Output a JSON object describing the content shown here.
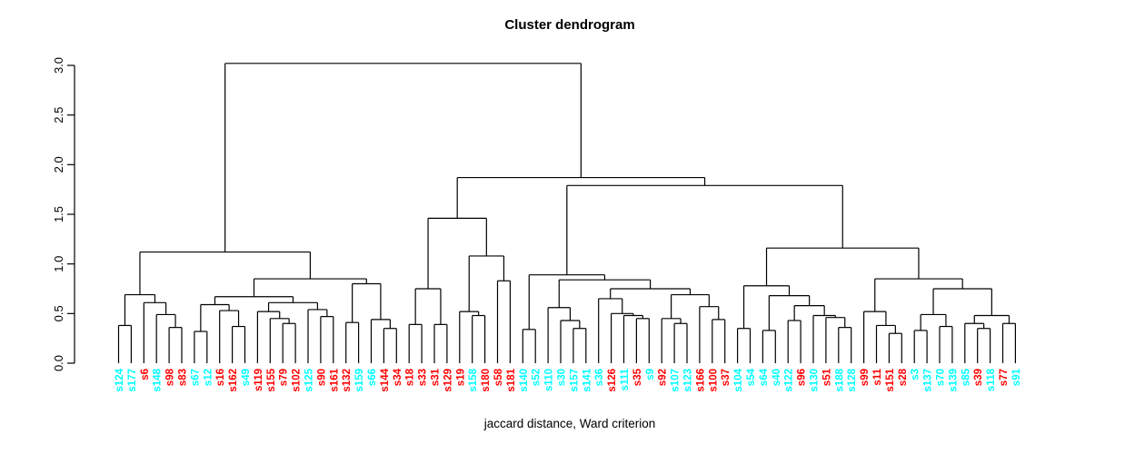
{
  "chart_data": {
    "type": "dendrogram",
    "title": "Cluster dendrogram",
    "xlabel": "jaccard distance, Ward criterion",
    "ylabel": "",
    "ylim": [
      0,
      3
    ],
    "y_ticks": [
      0,
      0.5,
      1,
      1.5,
      2,
      2.5,
      3
    ],
    "grid": false,
    "legend": "none",
    "line_color": "#000000",
    "label_colors": {
      "red": "#ff0000",
      "cyan": "#00ffff"
    },
    "leaves": [
      {
        "label": "s124",
        "color": "cyan"
      },
      {
        "label": "s177",
        "color": "cyan"
      },
      {
        "label": "s6",
        "color": "red"
      },
      {
        "label": "s148",
        "color": "cyan"
      },
      {
        "label": "s98",
        "color": "red"
      },
      {
        "label": "s83",
        "color": "red"
      },
      {
        "label": "s67",
        "color": "cyan"
      },
      {
        "label": "s12",
        "color": "cyan"
      },
      {
        "label": "s16",
        "color": "red"
      },
      {
        "label": "s162",
        "color": "red"
      },
      {
        "label": "s49",
        "color": "cyan"
      },
      {
        "label": "s119",
        "color": "red"
      },
      {
        "label": "s155",
        "color": "red"
      },
      {
        "label": "s79",
        "color": "red"
      },
      {
        "label": "s102",
        "color": "red"
      },
      {
        "label": "s125",
        "color": "cyan"
      },
      {
        "label": "s90",
        "color": "red"
      },
      {
        "label": "s161",
        "color": "red"
      },
      {
        "label": "s132",
        "color": "red"
      },
      {
        "label": "s159",
        "color": "cyan"
      },
      {
        "label": "s66",
        "color": "cyan"
      },
      {
        "label": "s144",
        "color": "red"
      },
      {
        "label": "s34",
        "color": "red"
      },
      {
        "label": "s18",
        "color": "red"
      },
      {
        "label": "s33",
        "color": "red"
      },
      {
        "label": "s31",
        "color": "red"
      },
      {
        "label": "s129",
        "color": "red"
      },
      {
        "label": "s19",
        "color": "red"
      },
      {
        "label": "s158",
        "color": "cyan"
      },
      {
        "label": "s180",
        "color": "red"
      },
      {
        "label": "s58",
        "color": "red"
      },
      {
        "label": "s181",
        "color": "red"
      },
      {
        "label": "s140",
        "color": "cyan"
      },
      {
        "label": "s52",
        "color": "cyan"
      },
      {
        "label": "s110",
        "color": "cyan"
      },
      {
        "label": "s30",
        "color": "cyan"
      },
      {
        "label": "s157",
        "color": "cyan"
      },
      {
        "label": "s141",
        "color": "cyan"
      },
      {
        "label": "s36",
        "color": "cyan"
      },
      {
        "label": "s126",
        "color": "red"
      },
      {
        "label": "s111",
        "color": "cyan"
      },
      {
        "label": "s35",
        "color": "red"
      },
      {
        "label": "s9",
        "color": "cyan"
      },
      {
        "label": "s92",
        "color": "red"
      },
      {
        "label": "s107",
        "color": "cyan"
      },
      {
        "label": "s123",
        "color": "cyan"
      },
      {
        "label": "s166",
        "color": "red"
      },
      {
        "label": "s100",
        "color": "red"
      },
      {
        "label": "s37",
        "color": "red"
      },
      {
        "label": "s104",
        "color": "cyan"
      },
      {
        "label": "s54",
        "color": "cyan"
      },
      {
        "label": "s64",
        "color": "cyan"
      },
      {
        "label": "s40",
        "color": "cyan"
      },
      {
        "label": "s122",
        "color": "cyan"
      },
      {
        "label": "s96",
        "color": "red"
      },
      {
        "label": "s130",
        "color": "cyan"
      },
      {
        "label": "s51",
        "color": "red"
      },
      {
        "label": "s188",
        "color": "cyan"
      },
      {
        "label": "s128",
        "color": "cyan"
      },
      {
        "label": "s99",
        "color": "red"
      },
      {
        "label": "s11",
        "color": "red"
      },
      {
        "label": "s151",
        "color": "red"
      },
      {
        "label": "s28",
        "color": "red"
      },
      {
        "label": "s3",
        "color": "cyan"
      },
      {
        "label": "s137",
        "color": "cyan"
      },
      {
        "label": "s70",
        "color": "cyan"
      },
      {
        "label": "s139",
        "color": "cyan"
      },
      {
        "label": "s85",
        "color": "cyan"
      },
      {
        "label": "s39",
        "color": "red"
      },
      {
        "label": "s118",
        "color": "cyan"
      },
      {
        "label": "s77",
        "color": "red"
      },
      {
        "label": "s91",
        "color": "cyan"
      }
    ],
    "tree": {
      "h": 3.02,
      "c": [
        {
          "h": 1.12,
          "c": [
            {
              "h": 0.69,
              "c": [
                {
                  "h": 0.38,
                  "c": [
                    0,
                    1
                  ]
                },
                {
                  "h": 0.61,
                  "c": [
                    2,
                    {
                      "h": 0.49,
                      "c": [
                        3,
                        {
                          "h": 0.36,
                          "c": [
                            4,
                            5
                          ]
                        }
                      ]
                    }
                  ]
                }
              ]
            },
            {
              "h": 0.85,
              "c": [
                {
                  "h": 0.67,
                  "c": [
                    {
                      "h": 0.59,
                      "c": [
                        {
                          "h": 0.32,
                          "c": [
                            6,
                            7
                          ]
                        },
                        {
                          "h": 0.53,
                          "c": [
                            8,
                            {
                              "h": 0.37,
                              "c": [
                                9,
                                10
                              ]
                            }
                          ]
                        }
                      ]
                    },
                    {
                      "h": 0.61,
                      "c": [
                        {
                          "h": 0.52,
                          "c": [
                            11,
                            {
                              "h": 0.45,
                              "c": [
                                12,
                                {
                                  "h": 0.4,
                                  "c": [
                                    13,
                                    14
                                  ]
                                }
                              ]
                            }
                          ]
                        },
                        {
                          "h": 0.54,
                          "c": [
                            15,
                            {
                              "h": 0.47,
                              "c": [
                                16,
                                17
                              ]
                            }
                          ]
                        }
                      ]
                    }
                  ]
                },
                {
                  "h": 0.8,
                  "c": [
                    {
                      "h": 0.41,
                      "c": [
                        18,
                        19
                      ]
                    },
                    {
                      "h": 0.44,
                      "c": [
                        20,
                        {
                          "h": 0.35,
                          "c": [
                            21,
                            22
                          ]
                        }
                      ]
                    }
                  ]
                }
              ]
            }
          ]
        },
        {
          "h": 1.87,
          "c": [
            {
              "h": 1.46,
              "c": [
                {
                  "h": 0.75,
                  "c": [
                    {
                      "h": 0.39,
                      "c": [
                        23,
                        24
                      ]
                    },
                    {
                      "h": 0.39,
                      "c": [
                        25,
                        26
                      ]
                    }
                  ]
                },
                {
                  "h": 1.08,
                  "c": [
                    {
                      "h": 0.52,
                      "c": [
                        27,
                        {
                          "h": 0.48,
                          "c": [
                            28,
                            29
                          ]
                        }
                      ]
                    },
                    {
                      "h": 0.83,
                      "c": [
                        30,
                        31
                      ]
                    }
                  ]
                }
              ]
            },
            {
              "h": 1.79,
              "c": [
                {
                  "h": 0.89,
                  "c": [
                    {
                      "h": 0.34,
                      "c": [
                        32,
                        33
                      ]
                    },
                    {
                      "h": 0.84,
                      "c": [
                        {
                          "h": 0.56,
                          "c": [
                            34,
                            {
                              "h": 0.43,
                              "c": [
                                35,
                                {
                                  "h": 0.35,
                                  "c": [
                                    36,
                                    37
                                  ]
                                }
                              ]
                            }
                          ]
                        },
                        {
                          "h": 0.75,
                          "c": [
                            {
                              "h": 0.65,
                              "c": [
                                38,
                                {
                                  "h": 0.5,
                                  "c": [
                                    39,
                                    {
                                      "h": 0.48,
                                      "c": [
                                        40,
                                        {
                                          "h": 0.45,
                                          "c": [
                                            41,
                                            42
                                          ]
                                        }
                                      ]
                                    }
                                  ]
                                }
                              ]
                            },
                            {
                              "h": 0.69,
                              "c": [
                                {
                                  "h": 0.45,
                                  "c": [
                                    43,
                                    {
                                      "h": 0.4,
                                      "c": [
                                        44,
                                        45
                                      ]
                                    }
                                  ]
                                },
                                {
                                  "h": 0.57,
                                  "c": [
                                    46,
                                    {
                                      "h": 0.44,
                                      "c": [
                                        47,
                                        48
                                      ]
                                    }
                                  ]
                                }
                              ]
                            }
                          ]
                        }
                      ]
                    }
                  ]
                },
                {
                  "h": 1.16,
                  "c": [
                    {
                      "h": 0.78,
                      "c": [
                        {
                          "h": 0.35,
                          "c": [
                            49,
                            50
                          ]
                        },
                        {
                          "h": 0.68,
                          "c": [
                            {
                              "h": 0.33,
                              "c": [
                                51,
                                52
                              ]
                            },
                            {
                              "h": 0.58,
                              "c": [
                                {
                                  "h": 0.43,
                                  "c": [
                                    53,
                                    54
                                  ]
                                },
                                {
                                  "h": 0.48,
                                  "c": [
                                    55,
                                    {
                                      "h": 0.46,
                                      "c": [
                                        56,
                                        {
                                          "h": 0.36,
                                          "c": [
                                            57,
                                            58
                                          ]
                                        }
                                      ]
                                    }
                                  ]
                                }
                              ]
                            }
                          ]
                        }
                      ]
                    },
                    {
                      "h": 0.85,
                      "c": [
                        {
                          "h": 0.52,
                          "c": [
                            59,
                            {
                              "h": 0.38,
                              "c": [
                                60,
                                {
                                  "h": 0.3,
                                  "c": [
                                    61,
                                    62
                                  ]
                                }
                              ]
                            }
                          ]
                        },
                        {
                          "h": 0.75,
                          "c": [
                            {
                              "h": 0.49,
                              "c": [
                                {
                                  "h": 0.33,
                                  "c": [
                                    63,
                                    64
                                  ]
                                },
                                {
                                  "h": 0.37,
                                  "c": [
                                    65,
                                    66
                                  ]
                                }
                              ]
                            },
                            {
                              "h": 0.48,
                              "c": [
                                {
                                  "h": 0.4,
                                  "c": [
                                    67,
                                    {
                                      "h": 0.35,
                                      "c": [
                                        68,
                                        69
                                      ]
                                    }
                                  ]
                                },
                                {
                                  "h": 0.4,
                                  "c": [
                                    70,
                                    71
                                  ]
                                }
                              ]
                            }
                          ]
                        }
                      ]
                    }
                  ]
                }
              ]
            }
          ]
        }
      ]
    }
  }
}
